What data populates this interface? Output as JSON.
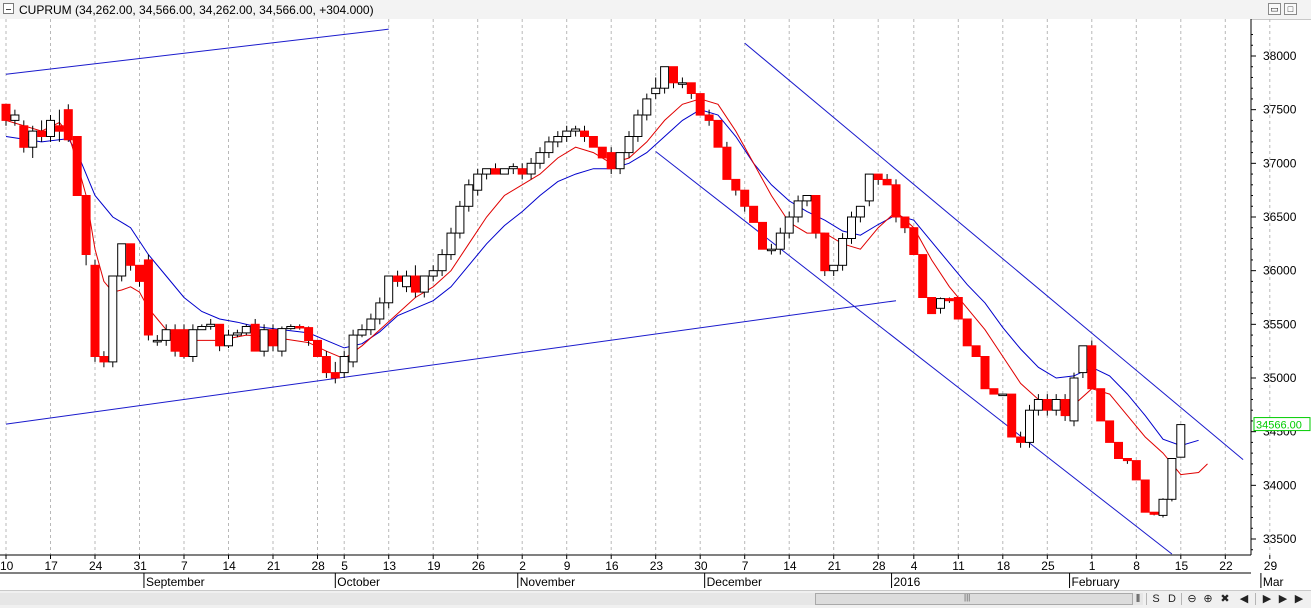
{
  "window": {
    "title": "CUPRUM (34,262.00, 34,566.00, 34,262.00, 34,566.00, +304.000)",
    "buttons": [
      "restore",
      "maximize"
    ]
  },
  "toolbar": {
    "pause_label": "‖",
    "sync_label": "S",
    "data_label": "D",
    "zoom_out_label": "⊖",
    "zoom_in_label": "⊕",
    "refresh_label": "✖",
    "prev_label": "◀",
    "next_label": "▶"
  },
  "colors": {
    "background": "#ffffff",
    "up_candle": "#ffffff",
    "down_candle": "#ff0000",
    "fast_ma": "#e00000",
    "slow_ma": "#0000cc",
    "trendline": "#1a1acc",
    "current_price": "#00cc00",
    "grid": "#b8b8b8"
  },
  "chart_data": {
    "type": "candlestick",
    "title": "",
    "ylim": [
      33300,
      38400
    ],
    "y_ticks": [
      33500,
      34000,
      34500,
      35000,
      35500,
      36000,
      36500,
      37000,
      37500,
      38000
    ],
    "current_price_label": "34566.00",
    "current_price": 34566,
    "x_tick_labels": [
      {
        "idx": 0,
        "label": "10"
      },
      {
        "idx": 5,
        "label": "17"
      },
      {
        "idx": 10,
        "label": "24"
      },
      {
        "idx": 15,
        "label": "31"
      },
      {
        "idx": 20,
        "label": "7"
      },
      {
        "idx": 25,
        "label": "14"
      },
      {
        "idx": 30,
        "label": "21"
      },
      {
        "idx": 35,
        "label": "28"
      },
      {
        "idx": 38,
        "label": "5"
      },
      {
        "idx": 43,
        "label": "13"
      },
      {
        "idx": 48,
        "label": "19"
      },
      {
        "idx": 53,
        "label": "26"
      },
      {
        "idx": 58,
        "label": "2"
      },
      {
        "idx": 63,
        "label": "9"
      },
      {
        "idx": 68,
        "label": "16"
      },
      {
        "idx": 73,
        "label": "23"
      },
      {
        "idx": 78,
        "label": "30"
      },
      {
        "idx": 83,
        "label": "7"
      },
      {
        "idx": 88,
        "label": "14"
      },
      {
        "idx": 93,
        "label": "21"
      },
      {
        "idx": 98,
        "label": "28"
      },
      {
        "idx": 102,
        "label": "4"
      },
      {
        "idx": 107,
        "label": "11"
      },
      {
        "idx": 112,
        "label": "18"
      },
      {
        "idx": 117,
        "label": "25"
      },
      {
        "idx": 122,
        "label": "1"
      },
      {
        "idx": 127,
        "label": "8"
      },
      {
        "idx": 132,
        "label": "15"
      },
      {
        "idx": 137,
        "label": "22"
      },
      {
        "idx": 142,
        "label": "29"
      }
    ],
    "month_labels": [
      {
        "idx": 15.5,
        "label": "September"
      },
      {
        "idx": 37,
        "label": "October"
      },
      {
        "idx": 57.5,
        "label": "November"
      },
      {
        "idx": 78.5,
        "label": "December"
      },
      {
        "idx": 99.5,
        "label": "2016"
      },
      {
        "idx": 119.5,
        "label": "February"
      },
      {
        "idx": 141,
        "label": "Mar"
      }
    ],
    "candles": [
      [
        37550,
        37550,
        37350,
        37400
      ],
      [
        37400,
        37500,
        37350,
        37450
      ],
      [
        37350,
        37400,
        37100,
        37150
      ],
      [
        37150,
        37350,
        37050,
        37300
      ],
      [
        37300,
        37400,
        37200,
        37250
      ],
      [
        37250,
        37450,
        37200,
        37400
      ],
      [
        37350,
        37500,
        37200,
        37300
      ],
      [
        37500,
        37550,
        37200,
        37220
      ],
      [
        37250,
        37250,
        36700,
        36700
      ],
      [
        36700,
        36700,
        36050,
        36150
      ],
      [
        36050,
        36100,
        35150,
        35200
      ],
      [
        35200,
        35250,
        35100,
        35150
      ],
      [
        35150,
        35950,
        35100,
        35950
      ],
      [
        35950,
        36250,
        35900,
        36250
      ],
      [
        36250,
        36250,
        36000,
        36050
      ],
      [
        36050,
        36050,
        35850,
        35900
      ],
      [
        36100,
        36150,
        35350,
        35400
      ],
      [
        35350,
        35400,
        35300,
        35350
      ],
      [
        35350,
        35500,
        35300,
        35450
      ],
      [
        35450,
        35500,
        35200,
        35250
      ],
      [
        35450,
        35500,
        35180,
        35200
      ],
      [
        35200,
        35500,
        35150,
        35450
      ],
      [
        35450,
        35500,
        35450,
        35480
      ],
      [
        35480,
        35550,
        35450,
        35500
      ],
      [
        35500,
        35500,
        35250,
        35300
      ],
      [
        35300,
        35450,
        35280,
        35400
      ],
      [
        35400,
        35450,
        35380,
        35420
      ],
      [
        35420,
        35500,
        35400,
        35480
      ],
      [
        35500,
        35550,
        35250,
        35250
      ],
      [
        35250,
        35500,
        35200,
        35450
      ],
      [
        35450,
        35500,
        35250,
        35300
      ],
      [
        35250,
        35480,
        35200,
        35460
      ],
      [
        35460,
        35500,
        35450,
        35480
      ],
      [
        35480,
        35500,
        35450,
        35470
      ],
      [
        35470,
        35480,
        35300,
        35350
      ],
      [
        35350,
        35350,
        35200,
        35200
      ],
      [
        35200,
        35250,
        35000,
        35050
      ],
      [
        35050,
        35150,
        34950,
        35000
      ],
      [
        35050,
        35250,
        35000,
        35200
      ],
      [
        35150,
        35450,
        35100,
        35400
      ],
      [
        35400,
        35500,
        35380,
        35450
      ],
      [
        35450,
        35600,
        35400,
        35550
      ],
      [
        35550,
        35750,
        35500,
        35700
      ],
      [
        35700,
        35950,
        35650,
        35950
      ],
      [
        35950,
        36000,
        35850,
        35900
      ],
      [
        35850,
        36000,
        35800,
        35950
      ],
      [
        35950,
        36050,
        35750,
        35800
      ],
      [
        35800,
        35950,
        35750,
        35950
      ],
      [
        35950,
        36050,
        35900,
        36000
      ],
      [
        36000,
        36200,
        35950,
        36150
      ],
      [
        36150,
        36400,
        36100,
        36350
      ],
      [
        36350,
        36650,
        36300,
        36600
      ],
      [
        36600,
        36850,
        36550,
        36800
      ],
      [
        36750,
        36950,
        36700,
        36900
      ],
      [
        36900,
        36950,
        36850,
        36950
      ],
      [
        36950,
        37000,
        36900,
        36900
      ],
      [
        36900,
        36950,
        36900,
        36950
      ],
      [
        36950,
        37000,
        36900,
        36970
      ],
      [
        36950,
        37000,
        36850,
        36900
      ],
      [
        36900,
        37050,
        36850,
        37000
      ],
      [
        37000,
        37150,
        36950,
        37100
      ],
      [
        37100,
        37250,
        37050,
        37200
      ],
      [
        37200,
        37300,
        37150,
        37250
      ],
      [
        37250,
        37350,
        37200,
        37300
      ],
      [
        37300,
        37350,
        37250,
        37320
      ],
      [
        37300,
        37350,
        37200,
        37250
      ],
      [
        37250,
        37250,
        37150,
        37150
      ],
      [
        37150,
        37150,
        37050,
        37050
      ],
      [
        37100,
        37150,
        36900,
        36950
      ],
      [
        36950,
        37100,
        36900,
        37100
      ],
      [
        37100,
        37300,
        37050,
        37250
      ],
      [
        37250,
        37500,
        37200,
        37450
      ],
      [
        37450,
        37650,
        37400,
        37600
      ],
      [
        37650,
        37800,
        37600,
        37700
      ],
      [
        37700,
        37900,
        37650,
        37900
      ],
      [
        37900,
        37900,
        37700,
        37750
      ],
      [
        37750,
        37800,
        37700,
        37750
      ],
      [
        37750,
        37750,
        37600,
        37650
      ],
      [
        37650,
        37650,
        37450,
        37450
      ],
      [
        37450,
        37500,
        37350,
        37400
      ],
      [
        37400,
        37400,
        37150,
        37150
      ],
      [
        37150,
        37200,
        36850,
        36850
      ],
      [
        36850,
        36850,
        36700,
        36750
      ],
      [
        36750,
        36750,
        36550,
        36600
      ],
      [
        36600,
        36600,
        36450,
        36450
      ],
      [
        36450,
        36450,
        36200,
        36200
      ],
      [
        36200,
        36250,
        36150,
        36200
      ],
      [
        36200,
        36400,
        36150,
        36350
      ],
      [
        36350,
        36550,
        36300,
        36500
      ],
      [
        36500,
        36700,
        36450,
        36650
      ],
      [
        36650,
        36700,
        36600,
        36700
      ],
      [
        36700,
        36700,
        36300,
        36350
      ],
      [
        36350,
        36350,
        35950,
        36000
      ],
      [
        36000,
        36050,
        35950,
        36050
      ],
      [
        36050,
        36350,
        36000,
        36300
      ],
      [
        36300,
        36550,
        36250,
        36500
      ],
      [
        36500,
        36600,
        36450,
        36600
      ],
      [
        36650,
        36900,
        36600,
        36900
      ],
      [
        36900,
        36900,
        36800,
        36850
      ],
      [
        36850,
        36900,
        36800,
        36800
      ],
      [
        36800,
        36850,
        36450,
        36500
      ],
      [
        36500,
        36500,
        36350,
        36400
      ],
      [
        36400,
        36400,
        36150,
        36150
      ],
      [
        36150,
        36150,
        35750,
        35750
      ],
      [
        35750,
        35750,
        35600,
        35600
      ],
      [
        35650,
        35750,
        35600,
        35740
      ],
      [
        35740,
        35750,
        35700,
        35720
      ],
      [
        35750,
        35750,
        35550,
        35550
      ],
      [
        35550,
        35550,
        35300,
        35300
      ],
      [
        35300,
        35300,
        35200,
        35200
      ],
      [
        35200,
        35200,
        34900,
        34900
      ],
      [
        34900,
        34900,
        34850,
        34850
      ],
      [
        34850,
        34850,
        34850,
        34850
      ],
      [
        34850,
        34850,
        34450,
        34450
      ],
      [
        34450,
        34500,
        34350,
        34400
      ],
      [
        34400,
        34750,
        34350,
        34700
      ],
      [
        34700,
        34850,
        34650,
        34800
      ],
      [
        34800,
        34850,
        34650,
        34700
      ],
      [
        34700,
        34850,
        34650,
        34800
      ],
      [
        34800,
        34850,
        34600,
        34650
      ],
      [
        34600,
        35050,
        34550,
        35000
      ],
      [
        35050,
        35300,
        35000,
        35300
      ],
      [
        35300,
        35350,
        34900,
        34900
      ],
      [
        34900,
        34900,
        34600,
        34600
      ],
      [
        34600,
        34600,
        34400,
        34400
      ],
      [
        34400,
        34400,
        34250,
        34250
      ],
      [
        34250,
        34250,
        34200,
        34230
      ],
      [
        34230,
        34230,
        34050,
        34050
      ],
      [
        34050,
        34050,
        33750,
        33750
      ],
      [
        33750,
        33750,
        33720,
        33730
      ],
      [
        33720,
        33880,
        33700,
        33870
      ],
      [
        33870,
        34250,
        33850,
        34250
      ],
      [
        34262,
        34566,
        34262,
        34566
      ]
    ],
    "fast_ma": [
      [
        0,
        37400
      ],
      [
        4,
        37300
      ],
      [
        6,
        37380
      ],
      [
        7,
        37280
      ],
      [
        8,
        37000
      ],
      [
        9,
        36700
      ],
      [
        10,
        36200
      ],
      [
        11,
        35900
      ],
      [
        12,
        35800
      ],
      [
        13,
        35820
      ],
      [
        14,
        35850
      ],
      [
        15,
        35800
      ],
      [
        16,
        35650
      ],
      [
        17,
        35550
      ],
      [
        18,
        35450
      ],
      [
        19,
        35380
      ],
      [
        21,
        35350
      ],
      [
        24,
        35350
      ],
      [
        27,
        35400
      ],
      [
        30,
        35380
      ],
      [
        34,
        35330
      ],
      [
        36,
        35250
      ],
      [
        38,
        35180
      ],
      [
        40,
        35300
      ],
      [
        42,
        35450
      ],
      [
        44,
        35600
      ],
      [
        46,
        35750
      ],
      [
        48,
        35850
      ],
      [
        50,
        36000
      ],
      [
        52,
        36250
      ],
      [
        54,
        36500
      ],
      [
        56,
        36700
      ],
      [
        58,
        36800
      ],
      [
        60,
        36900
      ],
      [
        62,
        37050
      ],
      [
        64,
        37150
      ],
      [
        66,
        37100
      ],
      [
        68,
        37000
      ],
      [
        70,
        37050
      ],
      [
        72,
        37200
      ],
      [
        74,
        37400
      ],
      [
        76,
        37550
      ],
      [
        78,
        37600
      ],
      [
        80,
        37550
      ],
      [
        82,
        37300
      ],
      [
        84,
        37000
      ],
      [
        86,
        36700
      ],
      [
        88,
        36450
      ],
      [
        90,
        36350
      ],
      [
        92,
        36350
      ],
      [
        94,
        36250
      ],
      [
        96,
        36200
      ],
      [
        98,
        36400
      ],
      [
        100,
        36550
      ],
      [
        102,
        36400
      ],
      [
        104,
        36100
      ],
      [
        106,
        35850
      ],
      [
        108,
        35650
      ],
      [
        110,
        35450
      ],
      [
        112,
        35200
      ],
      [
        114,
        34950
      ],
      [
        116,
        34800
      ],
      [
        118,
        34720
      ],
      [
        120,
        34750
      ],
      [
        122,
        34900
      ],
      [
        124,
        34850
      ],
      [
        126,
        34650
      ],
      [
        128,
        34450
      ],
      [
        130,
        34300
      ],
      [
        132,
        34100
      ],
      [
        134,
        34120
      ],
      [
        135,
        34200
      ]
    ],
    "slow_ma": [
      [
        0,
        37250
      ],
      [
        4,
        37200
      ],
      [
        7,
        37230
      ],
      [
        8,
        37100
      ],
      [
        10,
        36700
      ],
      [
        12,
        36500
      ],
      [
        14,
        36400
      ],
      [
        16,
        36150
      ],
      [
        18,
        35950
      ],
      [
        20,
        35750
      ],
      [
        22,
        35620
      ],
      [
        24,
        35550
      ],
      [
        26,
        35520
      ],
      [
        28,
        35480
      ],
      [
        30,
        35460
      ],
      [
        34,
        35420
      ],
      [
        36,
        35350
      ],
      [
        38,
        35280
      ],
      [
        40,
        35320
      ],
      [
        42,
        35430
      ],
      [
        44,
        35580
      ],
      [
        46,
        35650
      ],
      [
        48,
        35720
      ],
      [
        50,
        35850
      ],
      [
        52,
        36050
      ],
      [
        54,
        36250
      ],
      [
        56,
        36420
      ],
      [
        58,
        36550
      ],
      [
        60,
        36700
      ],
      [
        62,
        36830
      ],
      [
        64,
        36900
      ],
      [
        66,
        36950
      ],
      [
        68,
        36950
      ],
      [
        70,
        37000
      ],
      [
        72,
        37100
      ],
      [
        74,
        37250
      ],
      [
        76,
        37400
      ],
      [
        78,
        37500
      ],
      [
        80,
        37450
      ],
      [
        82,
        37250
      ],
      [
        84,
        37000
      ],
      [
        86,
        36800
      ],
      [
        88,
        36650
      ],
      [
        90,
        36550
      ],
      [
        92,
        36470
      ],
      [
        94,
        36370
      ],
      [
        96,
        36330
      ],
      [
        98,
        36430
      ],
      [
        100,
        36520
      ],
      [
        102,
        36470
      ],
      [
        104,
        36270
      ],
      [
        106,
        36070
      ],
      [
        108,
        35870
      ],
      [
        110,
        35700
      ],
      [
        112,
        35470
      ],
      [
        114,
        35270
      ],
      [
        116,
        35100
      ],
      [
        118,
        35000
      ],
      [
        120,
        35020
      ],
      [
        122,
        35100
      ],
      [
        124,
        35020
      ],
      [
        126,
        34850
      ],
      [
        128,
        34650
      ],
      [
        130,
        34430
      ],
      [
        132,
        34370
      ],
      [
        134,
        34420
      ]
    ],
    "trendlines": [
      {
        "from": [
          0,
          37830
        ],
        "to": [
          43,
          38250
        ]
      },
      {
        "from": [
          0,
          34570
        ],
        "to": [
          100,
          35720
        ]
      },
      {
        "from": [
          83,
          38120
        ],
        "to": [
          139,
          34240
        ]
      },
      {
        "from": [
          73,
          37110
        ],
        "to": [
          131,
          33360
        ]
      }
    ]
  }
}
